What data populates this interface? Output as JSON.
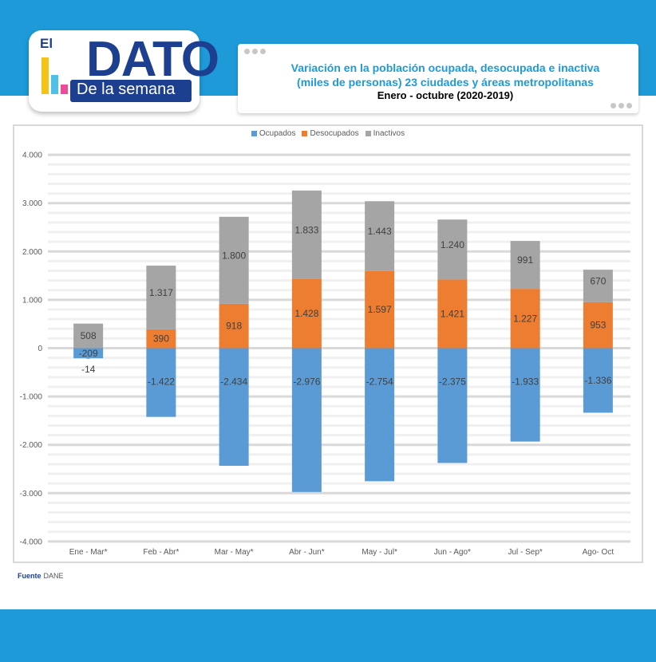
{
  "logo": {
    "el": "El",
    "dato": "DATO",
    "sub": "De la semana"
  },
  "title": {
    "line1": "Variación en la población ocupada, desocupada e inactiva",
    "line2": "(miles de personas) 23 ciudades y áreas metropolitanas",
    "line3": "Enero - octubre (2020-2019)"
  },
  "source": {
    "label": "Fuente",
    "value": "DANE"
  },
  "colors": {
    "band": "#1d9ad7",
    "ocupados": "#5b9bd5",
    "desocupados": "#ed7d31",
    "inactivos": "#a5a5a5"
  },
  "chart_data": {
    "type": "bar",
    "stacked": true,
    "categories": [
      "Ene - Mar*",
      "Feb - Abr*",
      "Mar - May*",
      "Abr - Jun*",
      "May - Jul*",
      "Jun - Ago*",
      "Jul - Sep*",
      "Ago- Oct"
    ],
    "series": [
      {
        "name": "Ocupados",
        "values": [
          -209,
          -1422,
          -2434,
          -2976,
          -2754,
          -2375,
          -1933,
          -1336
        ],
        "labels": [
          "-209",
          "-1.422",
          "-2.434",
          "-2.976",
          "-2.754",
          "-2.375",
          "-1.933",
          "-1.336"
        ]
      },
      {
        "name": "Desocupados",
        "values": [
          -14,
          390,
          918,
          1428,
          1597,
          1421,
          1227,
          953
        ],
        "labels": [
          "-14",
          "390",
          "918",
          "1.428",
          "1.597",
          "1.421",
          "1.227",
          "953"
        ]
      },
      {
        "name": "Inactivos",
        "values": [
          508,
          1317,
          1800,
          1833,
          1443,
          1240,
          991,
          670
        ],
        "labels": [
          "508",
          "1.317",
          "1.800",
          "1.833",
          "1.443",
          "1.240",
          "991",
          "670"
        ]
      }
    ],
    "yticks": [
      4000,
      3000,
      2000,
      1000,
      0,
      -1000,
      -2000,
      -3000,
      -4000
    ],
    "ytick_labels": [
      "4.000",
      "3.000",
      "2.000",
      "1.000",
      "0",
      "-1.000",
      "-2.000",
      "-3.000",
      "-4.000"
    ],
    "ylim": [
      -4000,
      4000
    ],
    "legend_position": "top-center",
    "grid": true
  }
}
